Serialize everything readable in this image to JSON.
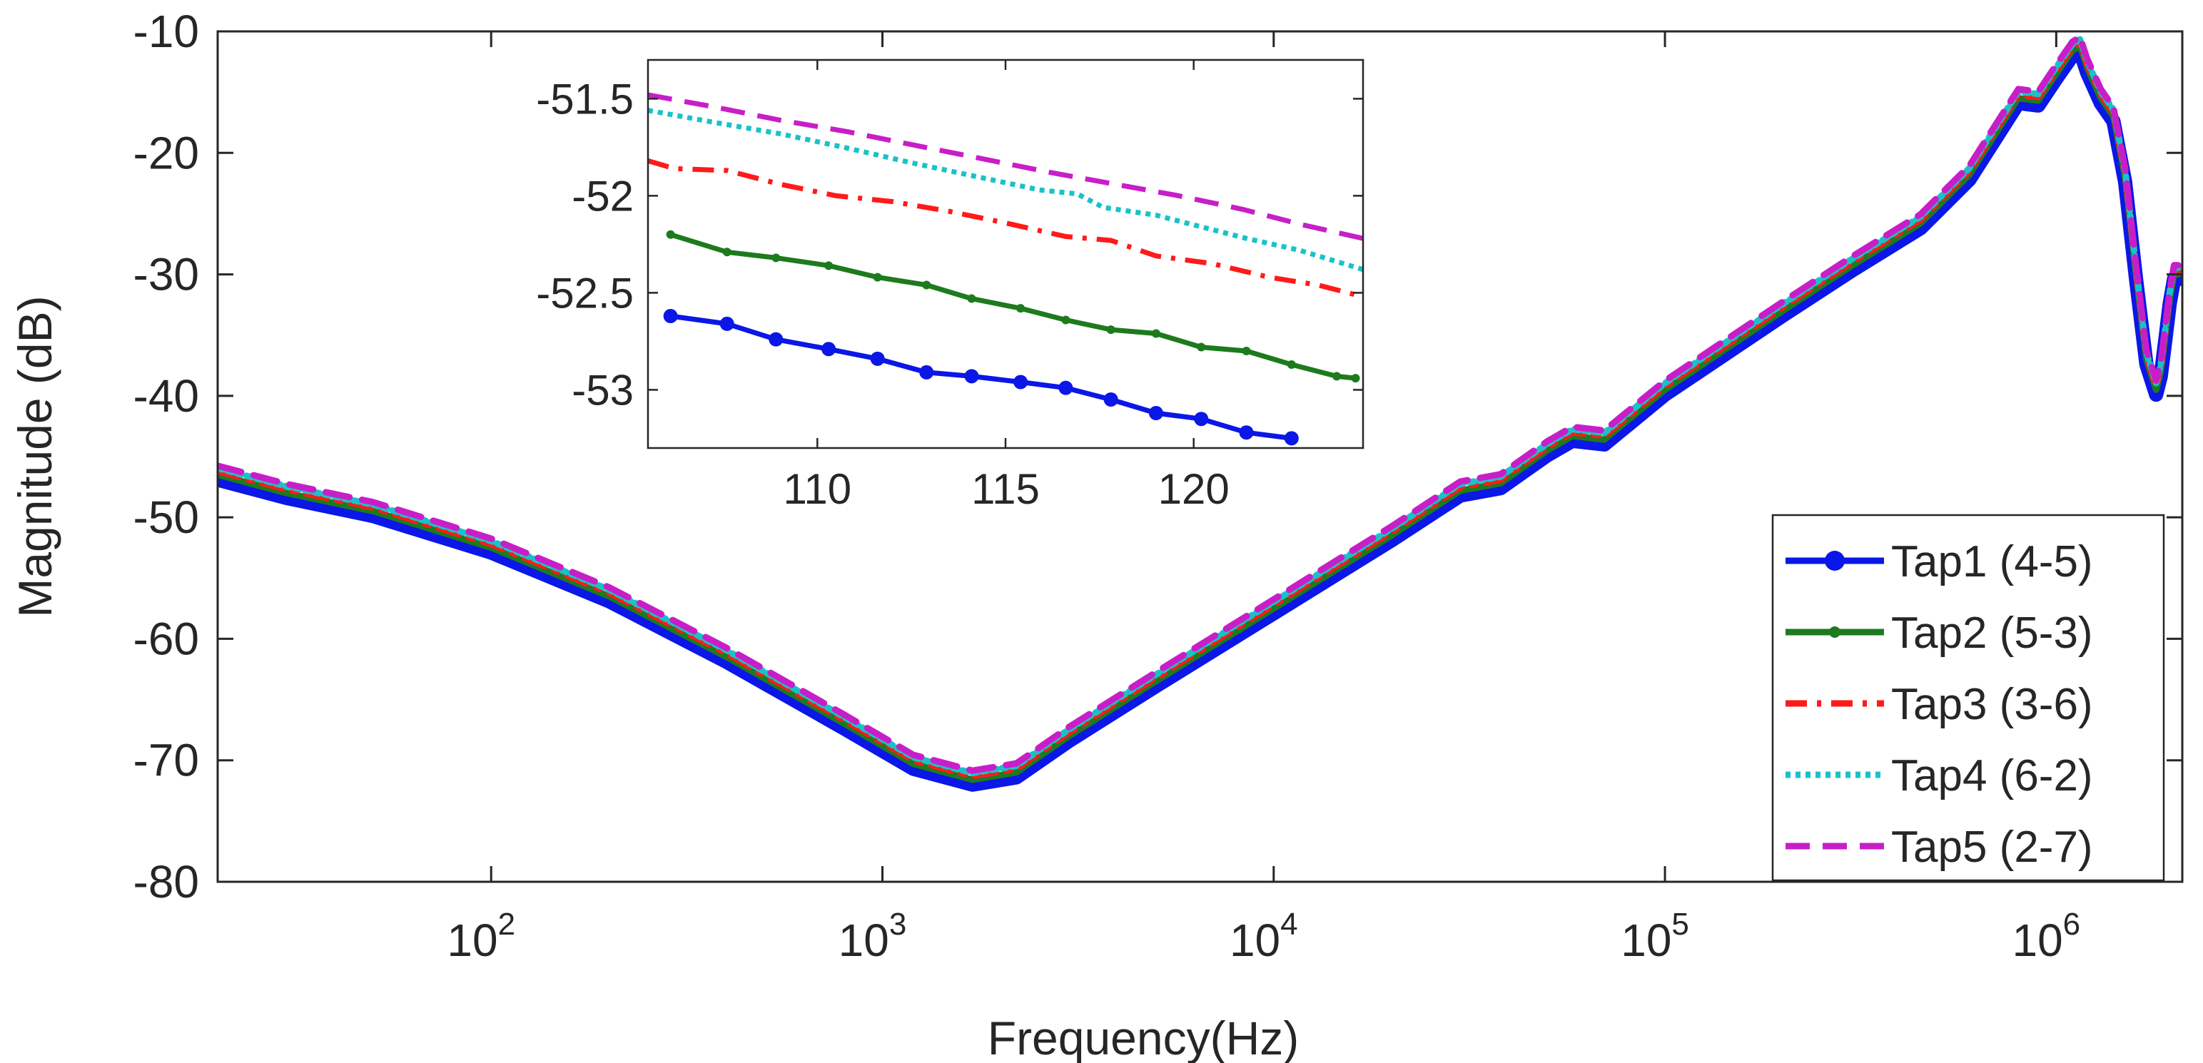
{
  "chart_data": [
    {
      "name": "main",
      "type": "line",
      "xscale": "log",
      "xlabel": "Frequency(Hz)",
      "ylabel": "Magnitude (dB)",
      "xlim": [
        20,
        2100000
      ],
      "ylim": [
        -80,
        -10
      ],
      "yticks": [
        -10,
        -20,
        -30,
        -40,
        -50,
        -60,
        -70,
        -80
      ],
      "ytick_labels": [
        "-10",
        "-20",
        "-30",
        "-40",
        "-50",
        "-60",
        "-70",
        "-80"
      ],
      "xticks": [
        {
          "value": 100,
          "base": "10",
          "exp": "2"
        },
        {
          "value": 1000,
          "base": "10",
          "exp": "3"
        },
        {
          "value": 10000,
          "base": "10",
          "exp": "4"
        },
        {
          "value": 100000,
          "base": "10",
          "exp": "5"
        },
        {
          "value": 1000000,
          "base": "10",
          "exp": "6"
        }
      ],
      "legend_position": "bottom-right",
      "series": [
        {
          "name": "Tap1 (4-5)",
          "color": "#0a17e6",
          "style": "solid-marker",
          "offset": -0.4,
          "x": [
            20,
            30,
            50,
            100,
            200,
            400,
            800,
            1200,
            1700,
            2200,
            3000,
            5000,
            10000,
            20000,
            30000,
            38000,
            50000,
            58000,
            70000,
            100000,
            200000,
            300000,
            450000,
            600000,
            800000,
            900000,
            1000000,
            1100000,
            1150000,
            1200000,
            1300000,
            1400000,
            1500000,
            1600000,
            1700000,
            1800000,
            1850000,
            1900000,
            1950000,
            2000000,
            2050000
          ],
          "y": [
            -46.5,
            -48,
            -49.5,
            -52.5,
            -56.5,
            -61.5,
            -67,
            -70.3,
            -71.6,
            -71,
            -68,
            -63.5,
            -57.5,
            -51.5,
            -47.8,
            -47.2,
            -44.5,
            -43.3,
            -43.6,
            -39.5,
            -33,
            -29.3,
            -25.8,
            -21.8,
            -15.5,
            -15.7,
            -13.5,
            -11.6,
            -11.2,
            -13,
            -15.5,
            -17,
            -22,
            -30,
            -37,
            -39.5,
            -38,
            -35,
            -32,
            -30,
            -30
          ]
        },
        {
          "name": "Tap2 (5-3)",
          "color": "#1d7a1d",
          "style": "solid-dot",
          "offset": 0,
          "x": [
            20,
            30,
            50,
            100,
            200,
            400,
            800,
            1200,
            1700,
            2200,
            3000,
            5000,
            10000,
            20000,
            30000,
            38000,
            50000,
            58000,
            70000,
            100000,
            200000,
            300000,
            450000,
            600000,
            800000,
            900000,
            1000000,
            1100000,
            1150000,
            1200000,
            1300000,
            1400000,
            1500000,
            1600000,
            1700000,
            1800000,
            1850000,
            1900000,
            1950000,
            2000000,
            2050000
          ],
          "y": [
            -46.5,
            -48,
            -49.5,
            -52.5,
            -56.5,
            -61.5,
            -67,
            -70.3,
            -71.6,
            -71,
            -68,
            -63.5,
            -57.5,
            -51.5,
            -47.8,
            -47.2,
            -44.5,
            -43.3,
            -43.6,
            -39.5,
            -33,
            -29.3,
            -25.8,
            -21.8,
            -15.5,
            -15.7,
            -13.5,
            -11.6,
            -11.2,
            -13,
            -15.5,
            -17,
            -22,
            -30,
            -37,
            -39.5,
            -38,
            -35,
            -32,
            -30,
            -30
          ]
        },
        {
          "name": "Tap3 (3-6)",
          "color": "#ff1a1a",
          "style": "dash-dot",
          "offset": 0.3,
          "x": [
            20,
            30,
            50,
            100,
            200,
            400,
            800,
            1200,
            1700,
            2200,
            3000,
            5000,
            10000,
            20000,
            30000,
            38000,
            50000,
            58000,
            70000,
            100000,
            200000,
            300000,
            450000,
            600000,
            800000,
            900000,
            1000000,
            1100000,
            1150000,
            1200000,
            1300000,
            1400000,
            1500000,
            1600000,
            1700000,
            1800000,
            1850000,
            1900000,
            1950000,
            2000000,
            2050000
          ],
          "y": [
            -46.5,
            -48,
            -49.5,
            -52.5,
            -56.5,
            -61.5,
            -67,
            -70.3,
            -71.6,
            -71,
            -68,
            -63.5,
            -57.5,
            -51.5,
            -47.8,
            -47.2,
            -44.5,
            -43.3,
            -43.6,
            -39.5,
            -33,
            -29.3,
            -25.8,
            -21.8,
            -15.5,
            -15.7,
            -13.5,
            -11.6,
            -11.2,
            -13,
            -15.5,
            -17,
            -22,
            -30,
            -37,
            -39.5,
            -38,
            -35,
            -32,
            -30,
            -30
          ]
        },
        {
          "name": "Tap4 (6-2)",
          "color": "#19c2c8",
          "style": "dotted",
          "offset": 0.55,
          "x": [
            20,
            30,
            50,
            100,
            200,
            400,
            800,
            1200,
            1700,
            2200,
            3000,
            5000,
            10000,
            20000,
            30000,
            38000,
            50000,
            58000,
            70000,
            100000,
            200000,
            300000,
            450000,
            600000,
            800000,
            900000,
            1000000,
            1100000,
            1150000,
            1200000,
            1300000,
            1400000,
            1500000,
            1600000,
            1700000,
            1800000,
            1850000,
            1900000,
            1950000,
            2000000,
            2050000
          ],
          "y": [
            -46.5,
            -48,
            -49.5,
            -52.5,
            -56.5,
            -61.5,
            -67,
            -70.3,
            -71.6,
            -71,
            -68,
            -63.5,
            -57.5,
            -51.5,
            -47.8,
            -47.2,
            -44.5,
            -43.3,
            -43.6,
            -39.5,
            -33,
            -29.3,
            -25.8,
            -21.8,
            -15.5,
            -15.7,
            -13.5,
            -11.6,
            -11.2,
            -13,
            -15.5,
            -17,
            -22,
            -30,
            -37,
            -39.5,
            -38,
            -35,
            -32,
            -30,
            -30
          ]
        },
        {
          "name": "Tap5 (2-7)",
          "color": "#c81ec8",
          "style": "dashed",
          "offset": 0.75,
          "x": [
            20,
            30,
            50,
            100,
            200,
            400,
            800,
            1200,
            1700,
            2200,
            3000,
            5000,
            10000,
            20000,
            30000,
            38000,
            50000,
            58000,
            70000,
            100000,
            200000,
            300000,
            450000,
            600000,
            800000,
            900000,
            1000000,
            1100000,
            1150000,
            1200000,
            1300000,
            1400000,
            1500000,
            1600000,
            1700000,
            1800000,
            1850000,
            1900000,
            1950000,
            2000000,
            2050000
          ],
          "y": [
            -46.5,
            -48,
            -49.5,
            -52.5,
            -56.5,
            -61.5,
            -67,
            -70.3,
            -71.6,
            -71,
            -68,
            -63.5,
            -57.5,
            -51.5,
            -47.8,
            -47.2,
            -44.5,
            -43.3,
            -43.6,
            -39.5,
            -33,
            -29.3,
            -25.8,
            -21.8,
            -15.5,
            -15.7,
            -13.5,
            -11.6,
            -11.2,
            -13,
            -15.5,
            -17,
            -22,
            -30,
            -37,
            -39.5,
            -38,
            -35,
            -32,
            -30,
            -30
          ]
        }
      ]
    },
    {
      "name": "inset",
      "type": "line",
      "xscale": "linear",
      "xlim": [
        105.5,
        124.5
      ],
      "ylim": [
        -53.3,
        -51.3
      ],
      "xticks": [
        110,
        115,
        120
      ],
      "xtick_labels": [
        "110",
        "115",
        "120"
      ],
      "yticks": [
        -51.5,
        -52,
        -52.5,
        -53
      ],
      "ytick_labels": [
        "-51.5",
        "-52",
        "-52.5",
        "-53"
      ],
      "series": [
        {
          "name": "Tap1 (4-5)",
          "x": [
            106.1,
            107.6,
            108.9,
            110.3,
            111.6,
            112.9,
            114.1,
            115.4,
            116.6,
            117.8,
            119,
            120.2,
            121.4,
            122.6
          ],
          "y": [
            -52.62,
            -52.66,
            -52.74,
            -52.79,
            -52.84,
            -52.91,
            -52.93,
            -52.96,
            -52.99,
            -53.05,
            -53.12,
            -53.15,
            -53.22,
            -53.25
          ]
        },
        {
          "name": "Tap2 (5-3)",
          "x": [
            106.1,
            107.6,
            108.9,
            110.3,
            111.6,
            112.9,
            114.1,
            115.4,
            116.6,
            117.8,
            119,
            120.2,
            121.4,
            122.6,
            123.8,
            124.3
          ],
          "y": [
            -52.2,
            -52.29,
            -52.32,
            -52.36,
            -52.42,
            -52.46,
            -52.53,
            -52.58,
            -52.64,
            -52.69,
            -52.71,
            -52.78,
            -52.8,
            -52.87,
            -52.93,
            -52.94
          ]
        },
        {
          "name": "Tap3 (3-6)",
          "x": [
            105.5,
            106.2,
            107.6,
            109,
            110.5,
            112,
            113.5,
            115,
            116.6,
            117.8,
            119,
            120.5,
            122,
            123.3,
            124.5
          ],
          "y": [
            -51.82,
            -51.86,
            -51.87,
            -51.94,
            -52.0,
            -52.03,
            -52.08,
            -52.14,
            -52.21,
            -52.23,
            -52.31,
            -52.35,
            -52.42,
            -52.46,
            -52.52
          ]
        },
        {
          "name": "Tap4 (6-2)",
          "x": [
            105.5,
            107.2,
            109,
            110.7,
            112.5,
            114.2,
            115.9,
            116.9,
            117.6,
            119,
            120.2,
            121.4,
            122.8,
            124.5
          ],
          "y": [
            -51.56,
            -51.62,
            -51.68,
            -51.75,
            -51.83,
            -51.9,
            -51.97,
            -51.99,
            -52.06,
            -52.1,
            -52.16,
            -52.22,
            -52.28,
            -52.38
          ]
        },
        {
          "name": "Tap5 (2-7)",
          "x": [
            105.5,
            107.2,
            109,
            110.8,
            112.6,
            114.4,
            116.2,
            117.9,
            119.6,
            121.3,
            122.9,
            124.5
          ],
          "y": [
            -51.48,
            -51.54,
            -51.61,
            -51.67,
            -51.74,
            -51.81,
            -51.88,
            -51.94,
            -52.0,
            -52.07,
            -52.15,
            -52.22
          ]
        }
      ]
    }
  ]
}
